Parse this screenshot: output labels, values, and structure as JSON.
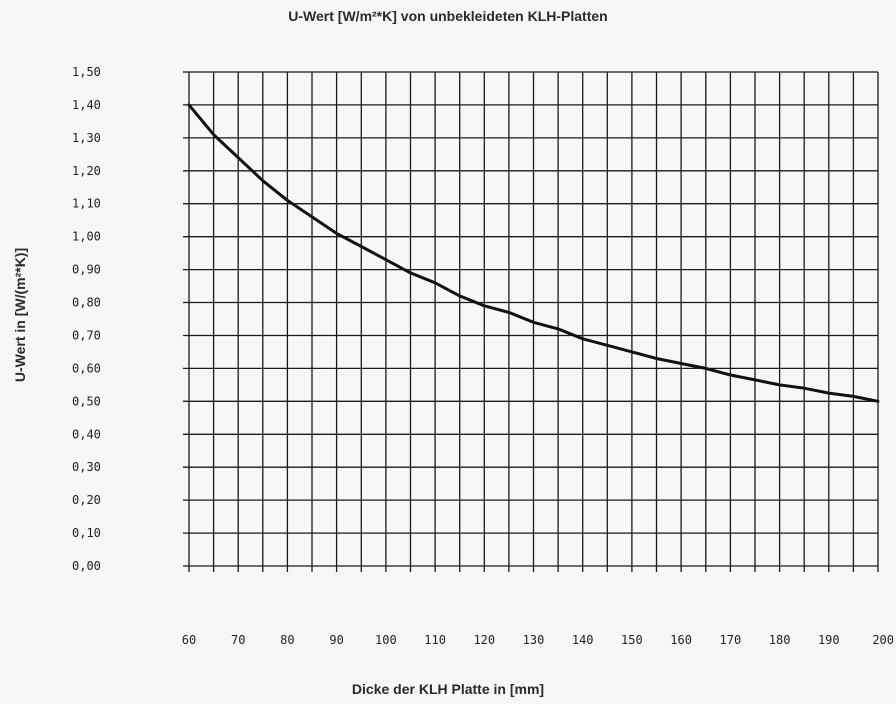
{
  "chart_data": {
    "type": "line",
    "title": "U-Wert [W/m²*K] von unbekleideten KLH-Platten",
    "xlabel": "Dicke der KLH Platte in [mm]",
    "ylabel": "U-Wert in [W/(m²*K)]",
    "x_ticks": [
      "60",
      "70",
      "80",
      "90",
      "100",
      "110",
      "120",
      "130",
      "140",
      "150",
      "160",
      "170",
      "180",
      "190",
      "200"
    ],
    "y_ticks": [
      "0,00",
      "0,10",
      "0,20",
      "0,30",
      "0,40",
      "0,50",
      "0,60",
      "0,70",
      "0,80",
      "0,90",
      "1,00",
      "1,10",
      "1,20",
      "1,30",
      "1,40",
      "1,50"
    ],
    "xlim": [
      60,
      200
    ],
    "ylim": [
      0,
      1.5
    ],
    "grid": true,
    "series": [
      {
        "x": [
          60,
          65,
          70,
          75,
          80,
          85,
          90,
          95,
          100,
          105,
          110,
          115,
          120,
          125,
          130,
          135,
          140,
          145,
          150,
          155,
          160,
          165,
          170,
          175,
          180,
          185,
          190,
          195,
          200
        ],
        "y": [
          1.4,
          1.31,
          1.24,
          1.17,
          1.11,
          1.06,
          1.01,
          0.97,
          0.93,
          0.89,
          0.86,
          0.82,
          0.79,
          0.77,
          0.74,
          0.72,
          0.69,
          0.67,
          0.65,
          0.63,
          0.615,
          0.6,
          0.58,
          0.565,
          0.55,
          0.54,
          0.525,
          0.515,
          0.5
        ]
      }
    ]
  }
}
